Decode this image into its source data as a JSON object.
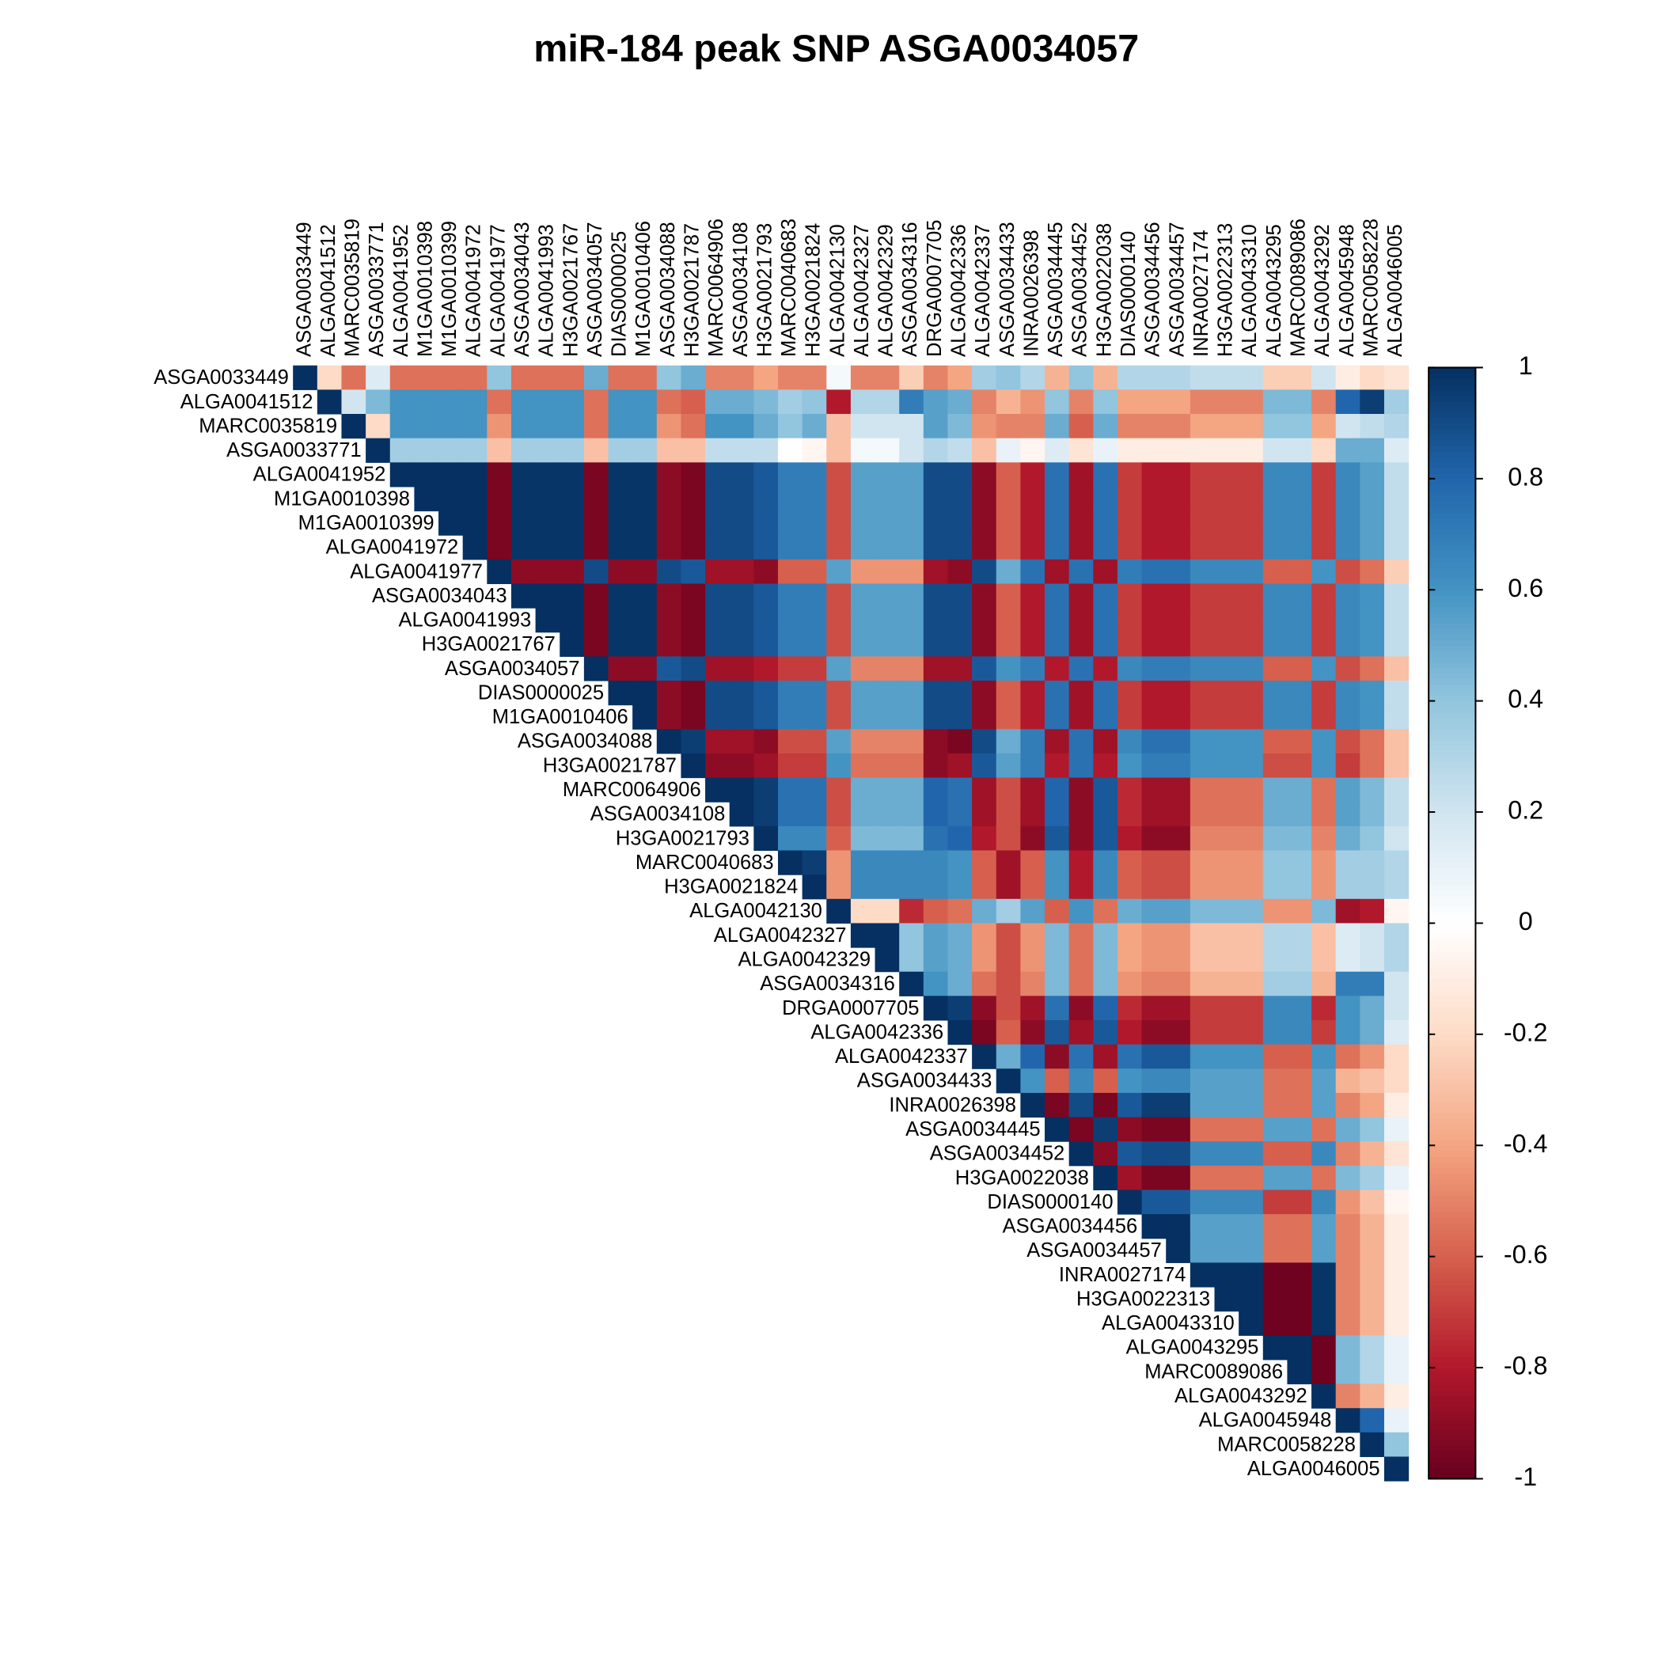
{
  "chart_data": {
    "type": "heatmap",
    "title": "miR-184 peak SNP ASGA0034057",
    "categories": [
      "ASGA0033449",
      "ALGA0041512",
      "MARC0035819",
      "ASGA0033771",
      "ALGA0041952",
      "M1GA0010398",
      "M1GA0010399",
      "ALGA0041972",
      "ALGA0041977",
      "ASGA0034043",
      "ALGA0041993",
      "H3GA0021767",
      "ASGA0034057",
      "DIAS0000025",
      "M1GA0010406",
      "ASGA0034088",
      "H3GA0021787",
      "MARC0064906",
      "ASGA0034108",
      "H3GA0021793",
      "MARC0040683",
      "H3GA0021824",
      "ALGA0042130",
      "ALGA0042327",
      "ALGA0042329",
      "ASGA0034316",
      "DRGA0007705",
      "ALGA0042336",
      "ALGA0042337",
      "ASGA0034433",
      "INRA0026398",
      "ASGA0034445",
      "ASGA0034452",
      "H3GA0022038",
      "DIAS0000140",
      "ASGA0034456",
      "ASGA0034457",
      "INRA0027174",
      "H3GA0022313",
      "ALGA0043310",
      "ALGA0043295",
      "MARC0089086",
      "ALGA0043292",
      "ALGA0045948",
      "MARC0058228",
      "ALGA0046005"
    ],
    "values": [
      [
        1,
        -0.2,
        -0.55,
        0.15,
        -0.55,
        -0.55,
        -0.55,
        -0.55,
        0.4,
        -0.55,
        -0.55,
        -0.55,
        0.5,
        -0.55,
        -0.55,
        0.4,
        0.5,
        -0.5,
        -0.5,
        -0.4,
        -0.5,
        -0.5,
        0.05,
        -0.5,
        -0.5,
        -0.25,
        -0.5,
        -0.4,
        0.35,
        0.4,
        0.3,
        -0.35,
        0.4,
        -0.35,
        0.3,
        0.3,
        0.3,
        0.25,
        0.25,
        0.25,
        -0.25,
        -0.25,
        0.2,
        -0.1,
        -0.2,
        -0.15
      ],
      [
        1,
        0.2,
        0.45,
        0.6,
        0.6,
        0.6,
        0.6,
        -0.55,
        0.6,
        0.6,
        0.6,
        -0.55,
        0.6,
        0.6,
        -0.55,
        -0.6,
        0.5,
        0.5,
        0.45,
        0.35,
        0.4,
        -0.8,
        0.3,
        0.3,
        0.7,
        0.55,
        0.5,
        -0.5,
        -0.35,
        -0.45,
        0.4,
        -0.5,
        0.4,
        -0.4,
        -0.4,
        -0.4,
        -0.5,
        -0.5,
        -0.5,
        0.45,
        0.45,
        -0.5,
        0.8,
        0.95,
        0.35
      ],
      [
        1,
        -0.2,
        0.6,
        0.6,
        0.6,
        0.6,
        -0.45,
        0.6,
        0.6,
        0.6,
        -0.55,
        0.6,
        0.6,
        -0.45,
        -0.55,
        0.6,
        0.6,
        0.5,
        0.4,
        0.5,
        -0.3,
        0.2,
        0.2,
        0.2,
        0.55,
        0.45,
        -0.45,
        -0.5,
        -0.5,
        0.5,
        -0.6,
        0.5,
        -0.5,
        -0.5,
        -0.5,
        -0.4,
        -0.4,
        -0.4,
        0.4,
        0.4,
        -0.4,
        0.2,
        0.25,
        0.3
      ],
      [
        1,
        0.35,
        0.35,
        0.35,
        0.35,
        -0.3,
        0.35,
        0.35,
        0.35,
        -0.3,
        0.35,
        0.35,
        -0.3,
        -0.3,
        0.25,
        0.25,
        0.25,
        0,
        -0.05,
        -0.3,
        0.05,
        0.05,
        0.2,
        0.3,
        0.25,
        -0.3,
        0.1,
        -0.05,
        0.15,
        -0.15,
        0.1,
        -0.1,
        -0.1,
        -0.1,
        -0.1,
        -0.1,
        -0.1,
        0.2,
        0.2,
        -0.2,
        0.5,
        0.5,
        0.15
      ],
      [
        1,
        1,
        1,
        1,
        -0.95,
        0.98,
        0.98,
        0.98,
        -0.95,
        0.98,
        0.98,
        -0.9,
        -0.95,
        0.9,
        0.9,
        0.85,
        0.7,
        0.7,
        -0.65,
        0.55,
        0.55,
        0.55,
        0.9,
        0.9,
        -0.9,
        -0.6,
        -0.8,
        0.75,
        -0.85,
        0.75,
        -0.7,
        -0.8,
        -0.8,
        -0.7,
        -0.7,
        -0.7,
        0.65,
        0.65,
        -0.7,
        0.65,
        0.55,
        0.25
      ],
      [
        1,
        1,
        1,
        -0.95,
        0.98,
        0.98,
        0.98,
        -0.95,
        0.98,
        0.98,
        -0.9,
        -0.95,
        0.9,
        0.9,
        0.85,
        0.7,
        0.7,
        -0.65,
        0.55,
        0.55,
        0.55,
        0.9,
        0.9,
        -0.9,
        -0.6,
        -0.8,
        0.75,
        -0.85,
        0.75,
        -0.7,
        -0.8,
        -0.8,
        -0.7,
        -0.7,
        -0.7,
        0.65,
        0.65,
        -0.7,
        0.65,
        0.55,
        0.25
      ],
      [
        1,
        1,
        -0.95,
        0.98,
        0.98,
        0.98,
        -0.95,
        0.98,
        0.98,
        -0.9,
        -0.95,
        0.9,
        0.9,
        0.85,
        0.7,
        0.7,
        -0.65,
        0.55,
        0.55,
        0.55,
        0.9,
        0.9,
        -0.9,
        -0.6,
        -0.8,
        0.75,
        -0.85,
        0.75,
        -0.7,
        -0.8,
        -0.8,
        -0.7,
        -0.7,
        -0.7,
        0.65,
        0.65,
        -0.7,
        0.65,
        0.55,
        0.25
      ],
      [
        1,
        -0.95,
        0.98,
        0.98,
        0.98,
        -0.95,
        0.98,
        0.98,
        -0.9,
        -0.95,
        0.9,
        0.9,
        0.85,
        0.7,
        0.7,
        -0.65,
        0.55,
        0.55,
        0.55,
        0.9,
        0.9,
        -0.9,
        -0.6,
        -0.8,
        0.75,
        -0.85,
        0.75,
        -0.7,
        -0.8,
        -0.8,
        -0.7,
        -0.7,
        -0.7,
        0.65,
        0.65,
        -0.7,
        0.65,
        0.55,
        0.25
      ],
      [
        1,
        -0.9,
        -0.9,
        -0.9,
        0.9,
        -0.9,
        -0.9,
        0.9,
        0.85,
        -0.85,
        -0.85,
        -0.9,
        -0.6,
        -0.6,
        0.55,
        -0.45,
        -0.45,
        -0.45,
        -0.85,
        -0.9,
        0.9,
        0.5,
        0.75,
        -0.85,
        0.75,
        -0.85,
        0.7,
        0.75,
        0.75,
        0.65,
        0.65,
        0.65,
        -0.6,
        -0.6,
        0.6,
        -0.65,
        -0.55,
        -0.25
      ],
      [
        1,
        1,
        1,
        -0.95,
        0.98,
        0.98,
        -0.9,
        -0.95,
        0.9,
        0.9,
        0.85,
        0.7,
        0.7,
        -0.65,
        0.55,
        0.55,
        0.55,
        0.9,
        0.9,
        -0.9,
        -0.6,
        -0.8,
        0.75,
        -0.85,
        0.75,
        -0.7,
        -0.8,
        -0.8,
        -0.7,
        -0.7,
        -0.7,
        0.65,
        0.65,
        -0.7,
        0.65,
        0.6,
        0.25
      ],
      [
        1,
        1,
        -0.95,
        0.98,
        0.98,
        -0.9,
        -0.95,
        0.9,
        0.9,
        0.85,
        0.7,
        0.7,
        -0.65,
        0.55,
        0.55,
        0.55,
        0.9,
        0.9,
        -0.9,
        -0.6,
        -0.8,
        0.75,
        -0.85,
        0.75,
        -0.7,
        -0.8,
        -0.8,
        -0.7,
        -0.7,
        -0.7,
        0.65,
        0.65,
        -0.7,
        0.65,
        0.6,
        0.25
      ],
      [
        1,
        -0.95,
        0.98,
        0.98,
        -0.9,
        -0.95,
        0.9,
        0.9,
        0.85,
        0.7,
        0.7,
        -0.65,
        0.55,
        0.55,
        0.55,
        0.9,
        0.9,
        -0.9,
        -0.6,
        -0.8,
        0.75,
        -0.85,
        0.75,
        -0.7,
        -0.8,
        -0.8,
        -0.7,
        -0.7,
        -0.7,
        0.65,
        0.65,
        -0.7,
        0.65,
        0.6,
        0.25
      ],
      [
        1,
        -0.9,
        -0.9,
        0.85,
        0.9,
        -0.85,
        -0.85,
        -0.8,
        -0.7,
        -0.7,
        0.55,
        -0.5,
        -0.5,
        -0.5,
        -0.85,
        -0.85,
        0.85,
        0.6,
        0.7,
        -0.8,
        0.75,
        -0.8,
        0.65,
        0.7,
        0.7,
        0.65,
        0.65,
        0.65,
        -0.6,
        -0.6,
        0.6,
        -0.65,
        -0.55,
        -0.3
      ],
      [
        1,
        1,
        -0.9,
        -0.95,
        0.9,
        0.9,
        0.85,
        0.7,
        0.7,
        -0.65,
        0.55,
        0.55,
        0.55,
        0.9,
        0.9,
        -0.9,
        -0.6,
        -0.8,
        0.75,
        -0.85,
        0.75,
        -0.7,
        -0.8,
        -0.8,
        -0.7,
        -0.7,
        -0.7,
        0.65,
        0.65,
        -0.7,
        0.65,
        0.6,
        0.25
      ],
      [
        1,
        -0.9,
        -0.95,
        0.9,
        0.9,
        0.85,
        0.7,
        0.7,
        -0.65,
        0.55,
        0.55,
        0.55,
        0.9,
        0.9,
        -0.9,
        -0.6,
        -0.8,
        0.75,
        -0.85,
        0.75,
        -0.7,
        -0.8,
        -0.8,
        -0.7,
        -0.7,
        -0.7,
        0.65,
        0.65,
        -0.7,
        0.65,
        0.6,
        0.25
      ],
      [
        1,
        0.95,
        -0.85,
        -0.85,
        -0.9,
        -0.65,
        -0.65,
        0.55,
        -0.5,
        -0.5,
        -0.5,
        -0.9,
        -0.95,
        0.9,
        0.5,
        0.7,
        -0.85,
        0.75,
        -0.85,
        0.65,
        0.75,
        0.75,
        0.6,
        0.6,
        0.6,
        -0.6,
        -0.6,
        0.6,
        -0.65,
        -0.55,
        -0.3
      ],
      [
        1,
        -0.9,
        -0.9,
        -0.85,
        -0.7,
        -0.7,
        0.6,
        -0.55,
        -0.55,
        -0.55,
        -0.9,
        -0.85,
        0.85,
        0.55,
        0.7,
        -0.8,
        0.75,
        -0.8,
        0.6,
        0.7,
        0.7,
        0.6,
        0.6,
        0.6,
        -0.65,
        -0.65,
        0.6,
        -0.7,
        -0.55,
        -0.3
      ],
      [
        1,
        1,
        0.95,
        0.75,
        0.75,
        -0.65,
        0.5,
        0.5,
        0.5,
        0.8,
        0.75,
        -0.85,
        -0.65,
        -0.85,
        0.8,
        -0.9,
        0.85,
        -0.75,
        -0.85,
        -0.85,
        -0.55,
        -0.55,
        -0.55,
        0.5,
        0.5,
        -0.55,
        0.55,
        0.45,
        0.25
      ],
      [
        1,
        0.95,
        0.75,
        0.75,
        -0.65,
        0.5,
        0.5,
        0.5,
        0.8,
        0.75,
        -0.85,
        -0.65,
        -0.85,
        0.8,
        -0.9,
        0.85,
        -0.75,
        -0.85,
        -0.85,
        -0.55,
        -0.55,
        -0.55,
        0.5,
        0.5,
        -0.55,
        0.55,
        0.45,
        0.25
      ],
      [
        1,
        0.65,
        0.65,
        -0.6,
        0.45,
        0.45,
        0.45,
        0.75,
        0.8,
        -0.8,
        -0.65,
        -0.9,
        0.85,
        -0.9,
        0.85,
        -0.8,
        -0.9,
        -0.9,
        -0.5,
        -0.5,
        -0.5,
        0.45,
        0.45,
        -0.5,
        0.5,
        0.4,
        0.2
      ],
      [
        1,
        0.95,
        -0.45,
        0.65,
        0.65,
        0.65,
        0.65,
        0.6,
        -0.6,
        -0.85,
        -0.6,
        0.6,
        -0.8,
        0.65,
        -0.6,
        -0.65,
        -0.65,
        -0.45,
        -0.45,
        -0.45,
        0.4,
        0.4,
        -0.45,
        0.35,
        0.35,
        0.3
      ],
      [
        1,
        -0.45,
        0.65,
        0.65,
        0.65,
        0.65,
        0.6,
        -0.6,
        -0.85,
        -0.6,
        0.6,
        -0.8,
        0.65,
        -0.6,
        -0.65,
        -0.65,
        -0.45,
        -0.45,
        -0.45,
        0.4,
        0.4,
        -0.45,
        0.35,
        0.35,
        0.3
      ],
      [
        1,
        -0.2,
        -0.2,
        -0.75,
        -0.6,
        -0.55,
        0.5,
        0.35,
        0.55,
        -0.6,
        0.6,
        -0.55,
        0.5,
        0.55,
        0.55,
        0.45,
        0.45,
        0.45,
        -0.45,
        -0.45,
        0.45,
        -0.85,
        -0.8,
        -0.05
      ],
      [
        1,
        1,
        0.4,
        0.55,
        0.5,
        -0.45,
        -0.65,
        -0.45,
        0.45,
        -0.55,
        0.45,
        -0.4,
        -0.45,
        -0.45,
        -0.3,
        -0.3,
        -0.3,
        0.3,
        0.3,
        -0.3,
        0.15,
        0.2,
        0.3
      ],
      [
        1,
        0.4,
        0.55,
        0.5,
        -0.45,
        -0.65,
        -0.45,
        0.45,
        -0.55,
        0.45,
        -0.4,
        -0.45,
        -0.45,
        -0.3,
        -0.3,
        -0.3,
        0.3,
        0.3,
        -0.3,
        0.15,
        0.2,
        0.3
      ],
      [
        1,
        0.6,
        0.5,
        -0.55,
        -0.65,
        -0.5,
        0.45,
        -0.55,
        0.45,
        -0.45,
        -0.5,
        -0.5,
        -0.35,
        -0.35,
        -0.35,
        0.35,
        0.35,
        -0.35,
        0.7,
        0.7,
        0.2
      ],
      [
        1,
        0.95,
        -0.9,
        -0.65,
        -0.85,
        0.75,
        -0.9,
        0.8,
        -0.75,
        -0.85,
        -0.85,
        -0.7,
        -0.7,
        -0.7,
        0.65,
        0.65,
        -0.75,
        0.6,
        0.5,
        0.2
      ],
      [
        1,
        -0.95,
        -0.6,
        -0.9,
        0.85,
        -0.85,
        0.85,
        -0.8,
        -0.9,
        -0.9,
        -0.7,
        -0.7,
        -0.7,
        0.65,
        0.65,
        -0.7,
        0.6,
        0.5,
        0.15
      ],
      [
        1,
        0.5,
        0.8,
        -0.9,
        0.75,
        -0.85,
        0.75,
        0.85,
        0.85,
        0.6,
        0.6,
        0.6,
        -0.6,
        -0.6,
        0.6,
        -0.55,
        -0.45,
        -0.2
      ],
      [
        1,
        0.6,
        -0.6,
        0.65,
        -0.6,
        0.6,
        0.65,
        0.65,
        0.55,
        0.55,
        0.55,
        -0.55,
        -0.55,
        0.55,
        -0.35,
        -0.3,
        -0.2
      ],
      [
        1,
        -0.95,
        0.9,
        -0.95,
        0.85,
        0.95,
        0.95,
        0.55,
        0.55,
        0.55,
        -0.55,
        -0.55,
        0.55,
        -0.5,
        -0.4,
        -0.1
      ],
      [
        1,
        -0.95,
        0.95,
        -0.9,
        -0.95,
        -0.95,
        -0.55,
        -0.55,
        -0.55,
        0.55,
        0.55,
        -0.55,
        0.5,
        0.4,
        0.1
      ],
      [
        1,
        -0.9,
        0.85,
        0.9,
        0.9,
        0.65,
        0.65,
        0.65,
        -0.6,
        -0.6,
        0.65,
        -0.5,
        -0.35,
        -0.15
      ],
      [
        1,
        -0.85,
        -0.95,
        -0.95,
        -0.55,
        -0.55,
        -0.55,
        0.55,
        0.55,
        -0.55,
        0.45,
        0.35,
        0.1
      ],
      [
        1,
        0.85,
        0.85,
        0.65,
        0.65,
        0.65,
        -0.7,
        -0.7,
        0.65,
        -0.45,
        -0.3,
        -0.05
      ],
      [
        1,
        1,
        0.55,
        0.55,
        0.55,
        -0.55,
        -0.55,
        0.55,
        -0.5,
        -0.35,
        -0.1
      ],
      [
        1,
        0.55,
        0.55,
        0.55,
        -0.55,
        -0.55,
        0.55,
        -0.5,
        -0.35,
        -0.1
      ],
      [
        1,
        1,
        1,
        -0.98,
        -0.98,
        0.98,
        -0.5,
        -0.35,
        -0.1
      ],
      [
        1,
        1,
        -0.98,
        -0.98,
        0.98,
        -0.5,
        -0.35,
        -0.1
      ],
      [
        1,
        -0.98,
        -0.98,
        0.98,
        -0.5,
        -0.35,
        -0.1
      ],
      [
        1,
        1,
        -0.98,
        0.45,
        0.3,
        0.1
      ],
      [
        1,
        -0.98,
        0.45,
        0.3,
        0.1
      ],
      [
        1,
        -0.5,
        -0.35,
        -0.1
      ],
      [
        1,
        0.8,
        0.1
      ],
      [
        1,
        0.4
      ],
      [
        1
      ]
    ],
    "clim": [
      -1,
      1
    ],
    "cticks": [
      1,
      0.8,
      0.6,
      0.4,
      0.2,
      0,
      -0.2,
      -0.4,
      -0.6,
      -0.8,
      -1
    ],
    "colorscale": [
      "#67001f",
      "#b2182b",
      "#d6604d",
      "#f4a582",
      "#fddbc7",
      "#ffffff",
      "#d1e5f0",
      "#92c5de",
      "#4393c3",
      "#2166ac",
      "#053061"
    ]
  }
}
